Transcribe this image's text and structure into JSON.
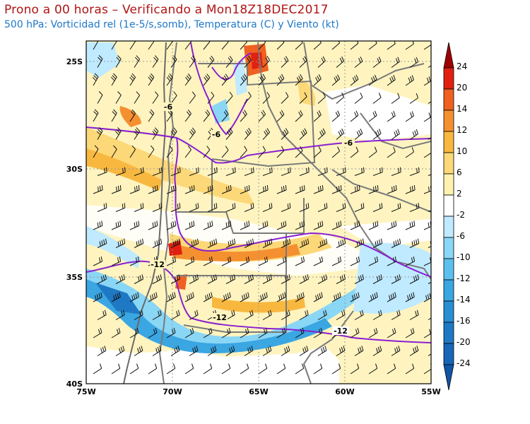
{
  "title": "Prono a 00 horas – Verificando a Mon18Z18DEC2017",
  "subtitle": "500 hPa: Vorticidad rel (1e-5/s,somb), Temperatura (C) y Viento (kt)",
  "axes": {
    "lat_labels": [
      "25S",
      "30S",
      "35S",
      "40S"
    ],
    "lon_labels": [
      "75W",
      "70W",
      "65W",
      "60W",
      "55W"
    ]
  },
  "isotherm_labels": [
    "-6",
    "-6",
    "-6",
    "-12",
    "-12",
    "-12"
  ],
  "colorbar": {
    "levels": [
      "24",
      "20",
      "14",
      "12",
      "10",
      "6",
      "2",
      "-2",
      "-6",
      "-10",
      "-12",
      "-14",
      "-16",
      "-20",
      "-24"
    ],
    "colors": [
      "#a00000",
      "#e02010",
      "#f06020",
      "#f59030",
      "#f8b840",
      "#fcd878",
      "#fff2b0",
      "#ffffff",
      "#bfeaff",
      "#8ad6f5",
      "#5cc0ee",
      "#3aa6e2",
      "#2a8ed3",
      "#1f78c4",
      "#1866b6",
      "#1155a5"
    ]
  }
}
